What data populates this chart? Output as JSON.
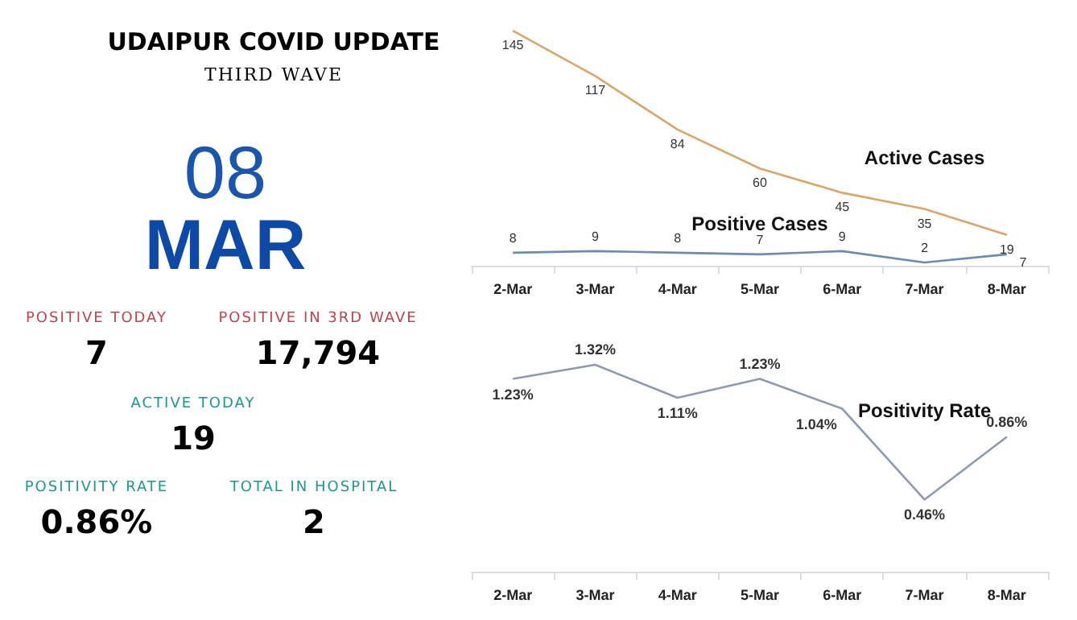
{
  "chart_data": [
    {
      "type": "other",
      "title": "UDAIPUR COVID UPDATE",
      "subtitle": "THIRD WAVE",
      "annotations": [
        "08",
        "MAR",
        "POSITIVE TODAY",
        "7",
        "POSITIVE IN 3RD WAVE",
        "17,794",
        "ACTIVE TODAY",
        "19",
        "POSITIVITY RATE",
        "0.86%",
        "TOTAL IN HOSPITAL",
        "2"
      ]
    },
    {
      "type": "line",
      "categories": [
        "2-Mar",
        "3-Mar",
        "4-Mar",
        "5-Mar",
        "6-Mar",
        "7-Mar",
        "8-Mar"
      ],
      "data_labels": true,
      "marker": "none",
      "legend": false,
      "series": [
        {
          "name": "Active Cases",
          "color": "#d9a66b",
          "values": [
            145,
            117,
            84,
            60,
            45,
            35,
            19
          ]
        },
        {
          "name": "Positive Cases",
          "color": "#6b8cb5",
          "values": [
            8,
            9,
            8,
            7,
            9,
            2,
            7
          ]
        }
      ]
    },
    {
      "type": "line",
      "categories": [
        "2-Mar",
        "3-Mar",
        "4-Mar",
        "5-Mar",
        "6-Mar",
        "7-Mar",
        "8-Mar"
      ],
      "marker": "none",
      "legend": false,
      "series": [
        {
          "name": "Positivity Rate",
          "color": "#8c9bb0",
          "values": [
            1.23,
            1.32,
            1.11,
            1.23,
            1.04,
            0.46,
            0.86
          ],
          "value_labels": [
            "1.23%",
            "1.32%",
            "1.11%",
            "1.23%",
            "1.04%",
            "0.46%",
            "0.86%"
          ]
        }
      ]
    }
  ]
}
